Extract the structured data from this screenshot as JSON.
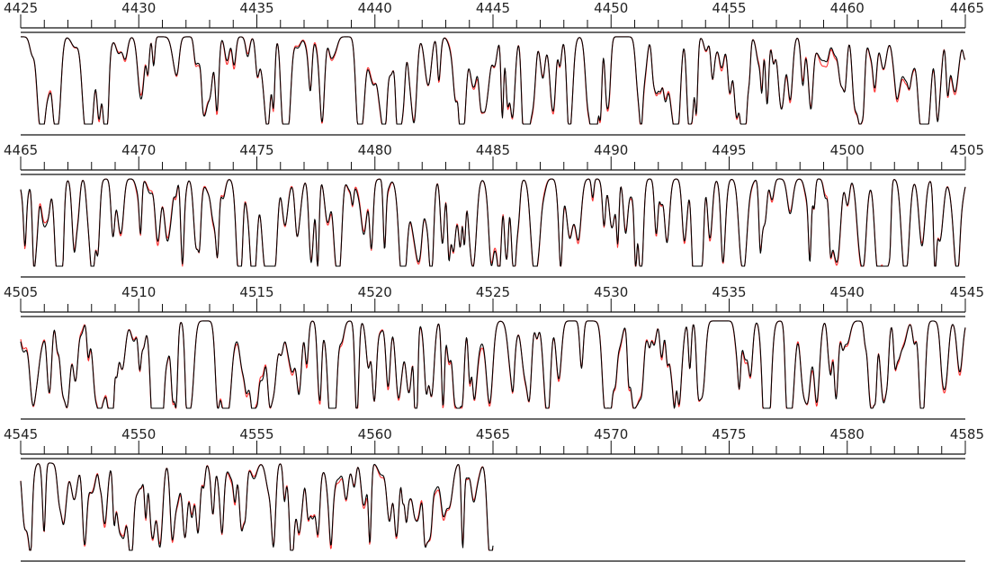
{
  "chart_data": {
    "type": "line",
    "panels": [
      {
        "xlim": [
          4425,
          4465
        ],
        "tick_labels": [
          "4425",
          "4430",
          "4435",
          "4440",
          "4445",
          "4450",
          "4455",
          "4460",
          "4465"
        ],
        "data_extent": [
          4425,
          4465
        ],
        "seed": 11
      },
      {
        "xlim": [
          4465,
          4505
        ],
        "tick_labels": [
          "4465",
          "4470",
          "4475",
          "4480",
          "4485",
          "4490",
          "4495",
          "4500",
          "4505"
        ],
        "data_extent": [
          4465,
          4505
        ],
        "seed": 23
      },
      {
        "xlim": [
          4505,
          4545
        ],
        "tick_labels": [
          "4505",
          "4510",
          "4515",
          "4520",
          "4525",
          "4530",
          "4535",
          "4540",
          "4545"
        ],
        "data_extent": [
          4505,
          4545
        ],
        "seed": 37
      },
      {
        "xlim": [
          4545,
          4585
        ],
        "tick_labels": [
          "4545",
          "4550",
          "4555",
          "4560",
          "4565",
          "4570",
          "4575",
          "4580",
          "4585"
        ],
        "data_extent": [
          4545,
          4565
        ],
        "seed": 53
      }
    ],
    "series": [
      {
        "color": "#ff3333"
      },
      {
        "color": "#000000"
      }
    ],
    "ylim": [
      0.3,
      1.05
    ],
    "grid": false,
    "legend": "none"
  }
}
